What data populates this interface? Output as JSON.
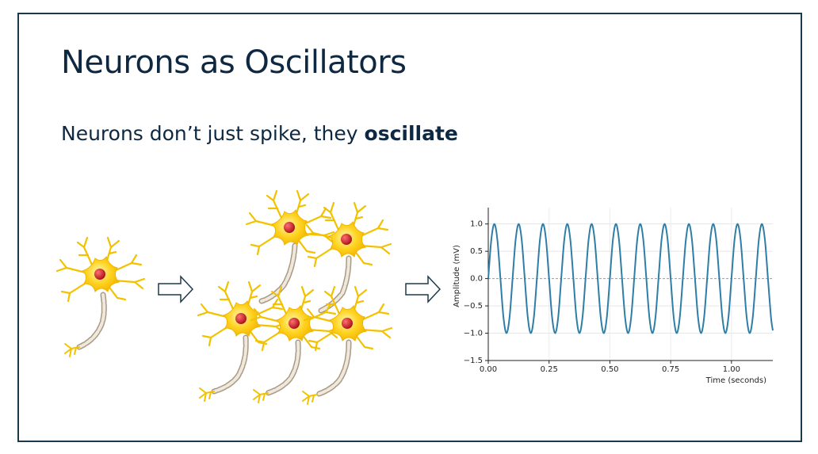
{
  "slide": {
    "title": "Neurons as Oscillators",
    "subtitle": {
      "text": "Neurons don’t just spike, they ",
      "bold": "oscillate"
    }
  },
  "chart_data": {
    "type": "line",
    "color": "#2e7ea6",
    "xlabel": "Time (seconds)",
    "ylabel": "Amplitude (mV)",
    "grid": true,
    "xlim": [
      0,
      1.17
    ],
    "ylim": [
      -1.5,
      1.3
    ],
    "xticks": [
      {
        "value": 0,
        "label": "0.00"
      },
      {
        "value": 0.25,
        "label": "0.25"
      },
      {
        "value": 0.5,
        "label": "0.50"
      },
      {
        "value": 0.75,
        "label": "0.75"
      },
      {
        "value": 1,
        "label": "1.00"
      }
    ],
    "yticks": [
      {
        "value": 1,
        "label": "1.0"
      },
      {
        "value": 0.5,
        "label": "0.5"
      },
      {
        "value": 0,
        "label": "0.0"
      },
      {
        "value": -0.5,
        "label": "−0.5"
      },
      {
        "value": -1,
        "label": "−1.0"
      },
      {
        "value": -1.5,
        "label": "−1.5"
      }
    ],
    "x": [
      0,
      0.0125,
      0.025,
      0.0375,
      0.05,
      0.0625,
      0.075,
      0.0875,
      0.1,
      0.1125,
      0.125,
      0.1375,
      0.15,
      0.1625,
      0.175,
      0.1875,
      0.2,
      0.2125,
      0.225,
      0.2375,
      0.25,
      0.2625,
      0.275,
      0.2875,
      0.3,
      0.3125,
      0.325,
      0.3375,
      0.35,
      0.3625,
      0.375,
      0.3875,
      0.4,
      0.4125,
      0.425,
      0.4375,
      0.45,
      0.4625,
      0.475,
      0.4875,
      0.5,
      0.5125,
      0.525,
      0.5375,
      0.55,
      0.5625,
      0.575,
      0.5875,
      0.6,
      0.6125,
      0.625,
      0.6375,
      0.65,
      0.6625,
      0.675,
      0.6875,
      0.7,
      0.7125,
      0.725,
      0.7375,
      0.75,
      0.7625,
      0.775,
      0.7875,
      0.8,
      0.8125,
      0.825,
      0.8375,
      0.85,
      0.8625,
      0.875,
      0.8875,
      0.9,
      0.9125,
      0.925,
      0.9375,
      0.95,
      0.9625,
      0.975,
      0.9875,
      1.0,
      1.0125,
      1.025,
      1.0375,
      1.05,
      1.0625,
      1.075,
      1.0875,
      1.1,
      1.1125,
      1.125,
      1.1375,
      1.15,
      1.1625,
      1.17
    ],
    "values": [
      0,
      0.71,
      1,
      0.71,
      0,
      -0.71,
      -1,
      -0.71,
      0,
      0.71,
      1,
      0.71,
      0,
      -0.71,
      -1,
      -0.71,
      0,
      0.71,
      1,
      0.71,
      0,
      -0.71,
      -1,
      -0.71,
      0,
      0.71,
      1,
      0.71,
      0,
      -0.71,
      -1,
      -0.71,
      0,
      0.71,
      1,
      0.71,
      0,
      -0.71,
      -1,
      -0.71,
      0,
      0.71,
      1,
      0.71,
      0,
      -0.71,
      -1,
      -0.71,
      0,
      0.71,
      1,
      0.71,
      0,
      -0.71,
      -1,
      -0.71,
      0,
      0.71,
      1,
      0.71,
      0,
      -0.71,
      -1,
      -0.71,
      0,
      0.71,
      1,
      0.71,
      0,
      -0.71,
      -1,
      -0.71,
      0,
      0.71,
      1,
      0.71,
      0,
      -0.71,
      -1,
      -0.71,
      0,
      0.71,
      1,
      0.71,
      0,
      -0.71,
      -1,
      -0.71,
      0,
      0.71,
      1,
      0.71,
      0,
      -0.71,
      -0.95
    ]
  }
}
